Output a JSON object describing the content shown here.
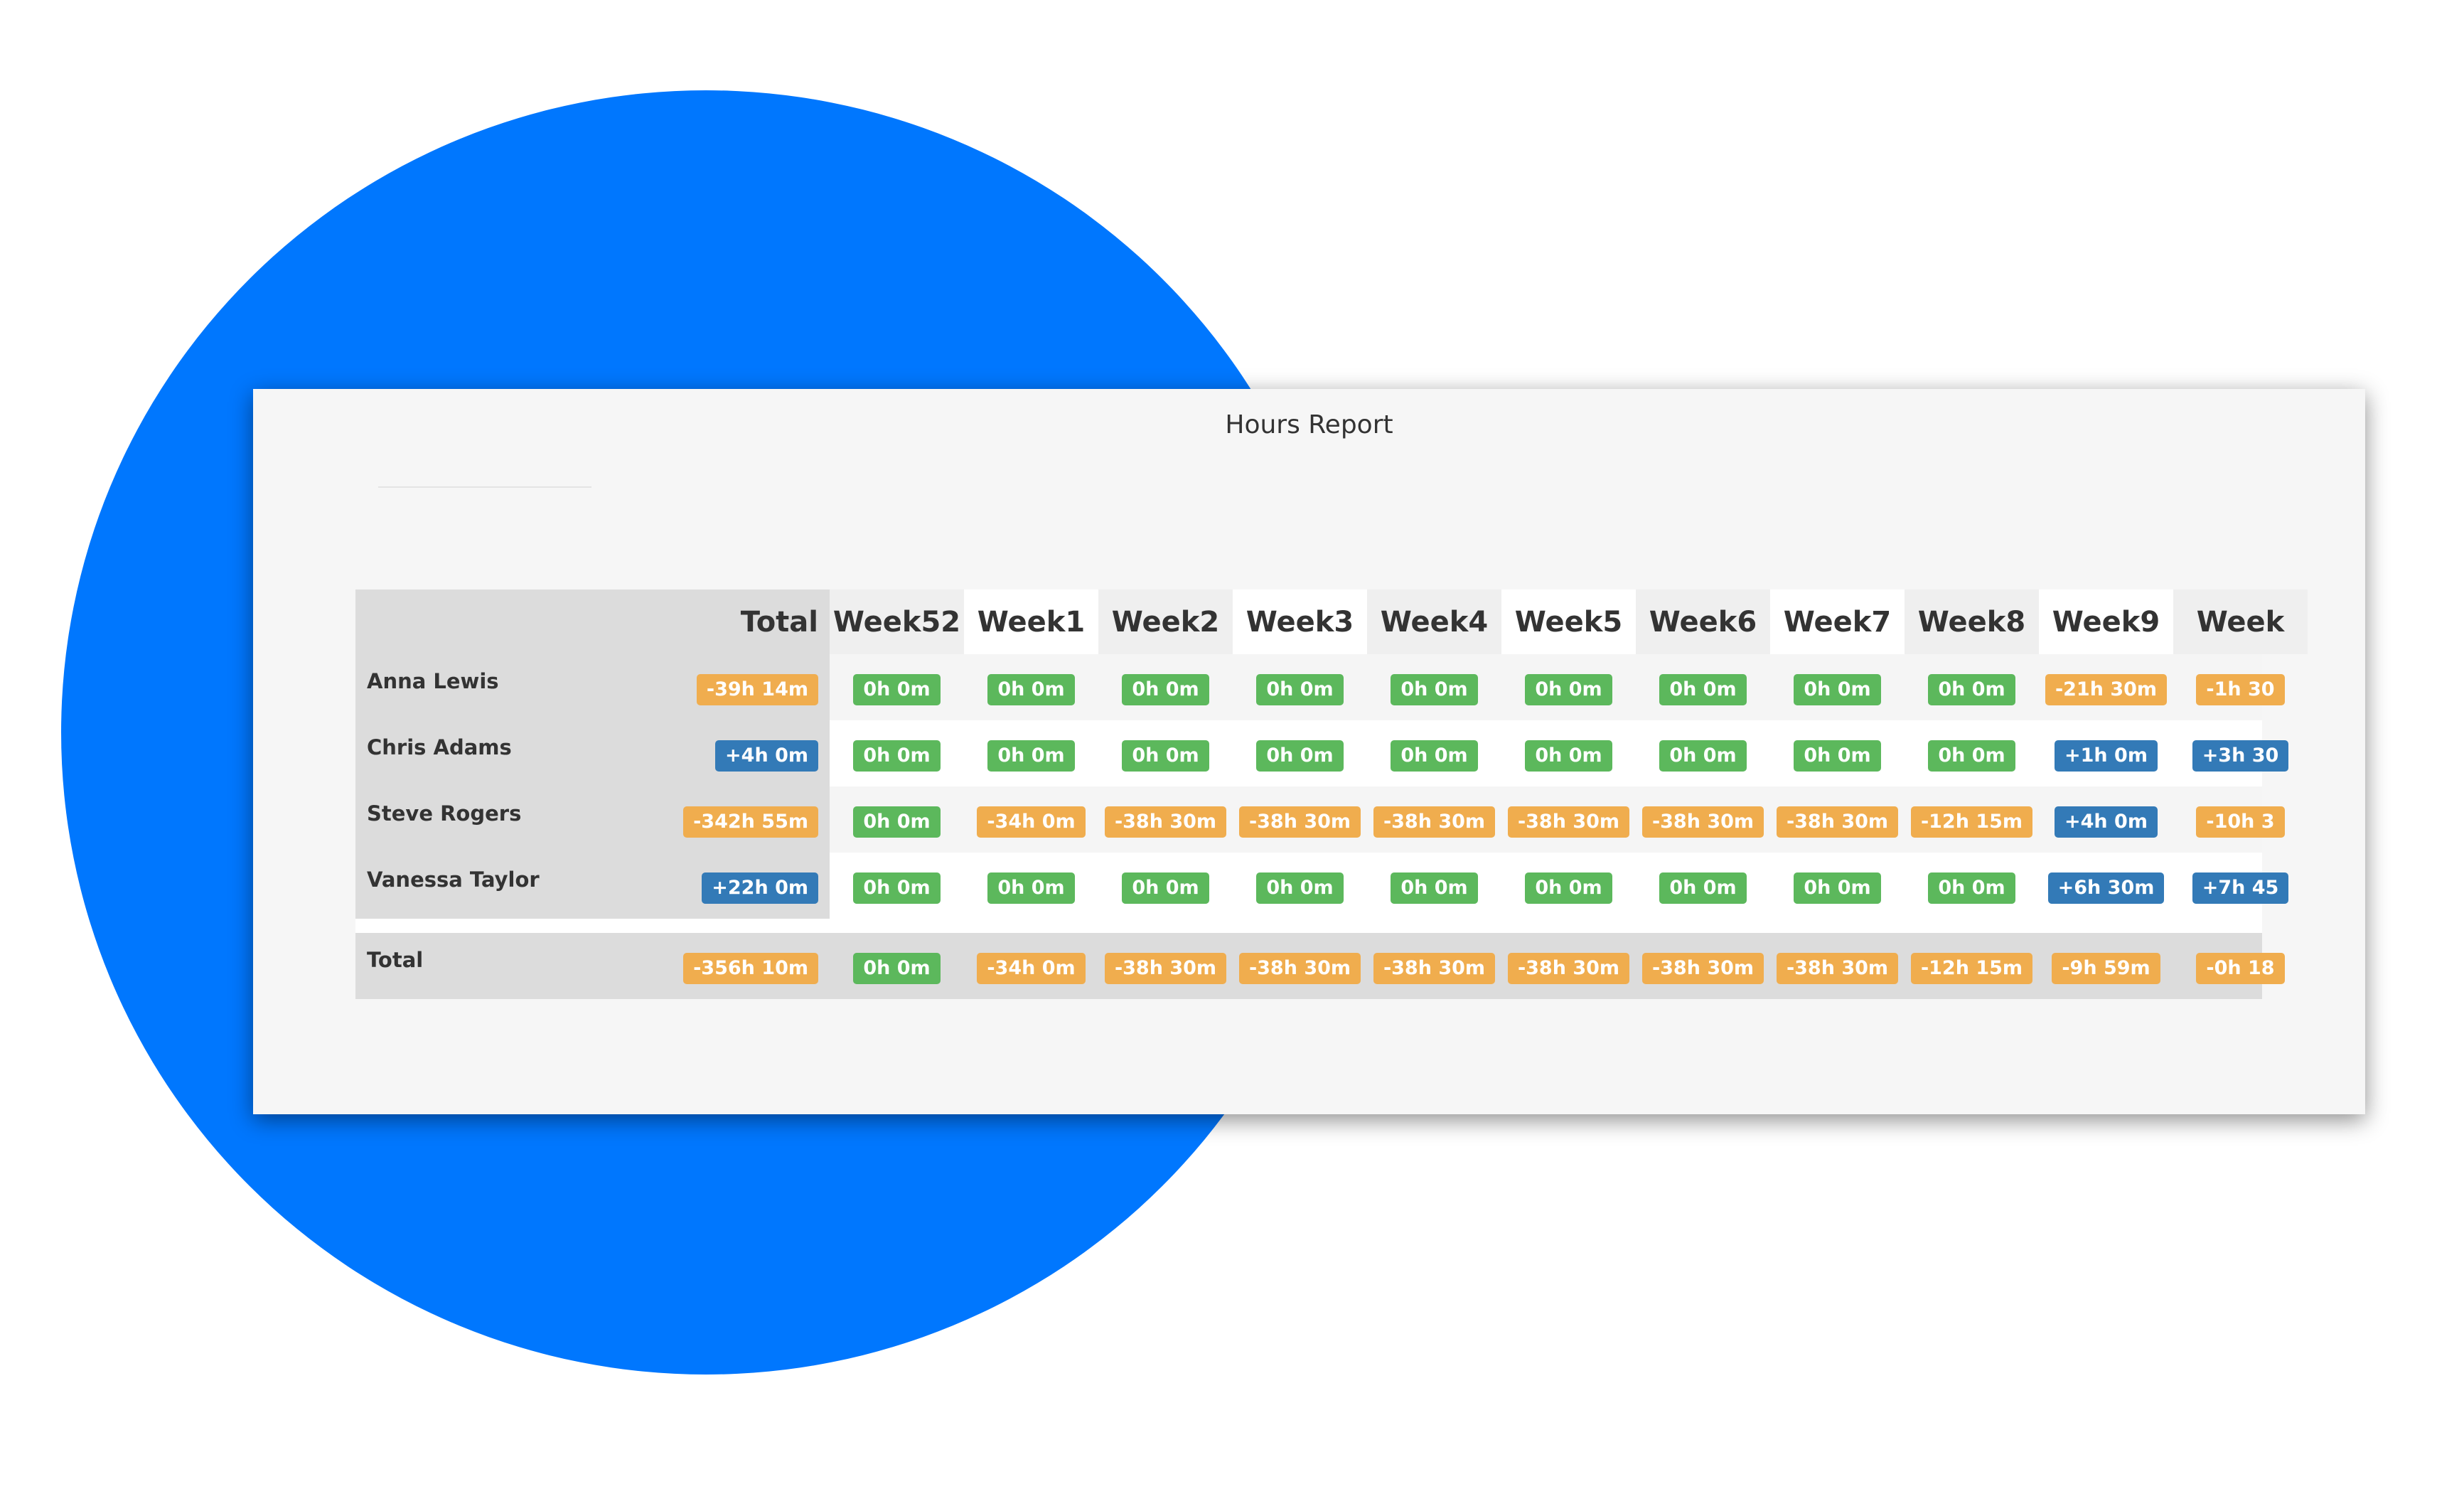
{
  "header": {
    "title": "Hours Report"
  },
  "table": {
    "columns": [
      "Total",
      "Week52",
      "Week1",
      "Week2",
      "Week3",
      "Week4",
      "Week5",
      "Week6",
      "Week7",
      "Week8",
      "Week9",
      "Week"
    ],
    "rows": [
      {
        "name": "Anna Lewis",
        "cells": [
          "-39h 14m",
          "0h 0m",
          "0h 0m",
          "0h 0m",
          "0h 0m",
          "0h 0m",
          "0h 0m",
          "0h 0m",
          "0h 0m",
          "0h 0m",
          "-21h 30m",
          "-1h 30"
        ]
      },
      {
        "name": "Chris Adams",
        "cells": [
          "+4h 0m",
          "0h 0m",
          "0h 0m",
          "0h 0m",
          "0h 0m",
          "0h 0m",
          "0h 0m",
          "0h 0m",
          "0h 0m",
          "0h 0m",
          "+1h 0m",
          "+3h 30"
        ]
      },
      {
        "name": "Steve Rogers",
        "cells": [
          "-342h 55m",
          "0h 0m",
          "-34h 0m",
          "-38h 30m",
          "-38h 30m",
          "-38h 30m",
          "-38h 30m",
          "-38h 30m",
          "-38h 30m",
          "-12h 15m",
          "+4h 0m",
          "-10h 3"
        ]
      },
      {
        "name": "Vanessa Taylor",
        "cells": [
          "+22h 0m",
          "0h 0m",
          "0h 0m",
          "0h 0m",
          "0h 0m",
          "0h 0m",
          "0h 0m",
          "0h 0m",
          "0h 0m",
          "0h 0m",
          "+6h 30m",
          "+7h 45"
        ]
      }
    ],
    "total_row": {
      "name": "Total",
      "cells": [
        "-356h 10m",
        "0h 0m",
        "-34h 0m",
        "-38h 30m",
        "-38h 30m",
        "-38h 30m",
        "-38h 30m",
        "-38h 30m",
        "-38h 30m",
        "-12h 15m",
        "-9h 59m",
        "-0h 18"
      ]
    }
  }
}
